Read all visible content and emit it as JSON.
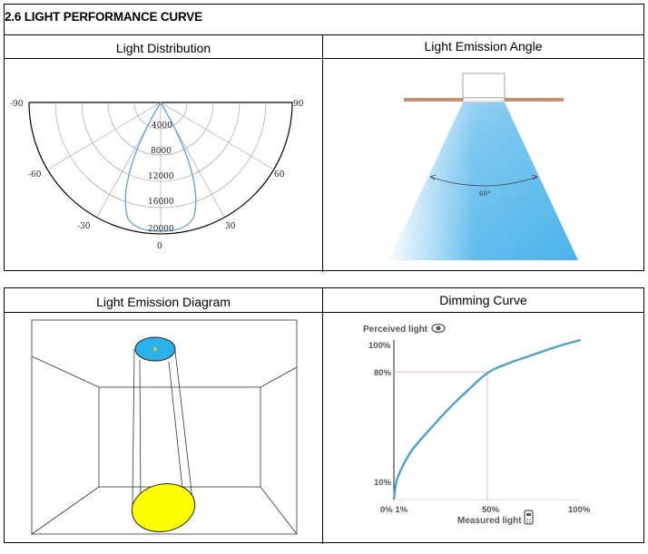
{
  "section_title": "2.6 LIGHT PERFORMANCE CURVE",
  "headers": {
    "light_distribution": "Light Distribution",
    "emission_angle": "Light Emission Angle",
    "emission_diagram": "Light Emission Diagram",
    "dimming_curve": "Dimming Curve"
  },
  "polar": {
    "angles": [
      "-90",
      "90",
      "-60",
      "60",
      "-30",
      "30",
      "0"
    ],
    "rings": [
      "4000",
      "8000",
      "12000",
      "16000",
      "20000"
    ]
  },
  "beam": {
    "angle_label": "60°"
  },
  "dimming": {
    "y_title": "Perceived light",
    "x_title": "Measured light",
    "y_ticks": [
      "100%",
      "80%",
      "10%"
    ],
    "x_ticks": [
      "0% 1%",
      "50%",
      "100%"
    ],
    "colors": {
      "curve": "#4aa3c9",
      "guide": "#e6b0b8"
    }
  },
  "chart_data": {
    "type": "line",
    "title": "Dimming Curve",
    "xlabel": "Measured light",
    "ylabel": "Perceived light",
    "x": [
      1,
      2,
      5,
      10,
      20,
      30,
      40,
      50,
      60,
      70,
      80,
      90,
      100
    ],
    "values": [
      10,
      14,
      22,
      32,
      45,
      58,
      69,
      80,
      85,
      89,
      93,
      97,
      100
    ],
    "xlim": [
      0,
      100
    ],
    "ylim": [
      0,
      100
    ]
  }
}
